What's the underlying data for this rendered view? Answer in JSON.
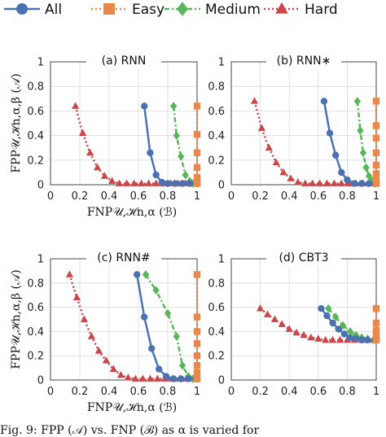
{
  "legend": [
    {
      "label": "All",
      "color": "#4a72b0",
      "marker": "circle",
      "dash": "solid"
    },
    {
      "label": "Easy",
      "color": "#e8884a",
      "marker": "square",
      "dash": "dotted"
    },
    {
      "label": "Medium",
      "color": "#5ab55a",
      "marker": "diamond",
      "dash": "dashdot"
    },
    {
      "label": "Hard",
      "color": "#c9464a",
      "marker": "triangle",
      "dash": "dotted"
    }
  ],
  "axes": {
    "ylabel": "FPP𝒰,ℋn,α,β (𝒜)",
    "xlabel": "FNP𝒰,ℋn,α (ℬ)"
  },
  "caption": "Fig. 9: FPP        (𝒜) vs. FNP        (ℬ) as α is varied for",
  "chart_data": [
    {
      "type": "line",
      "title": "(a) RNN",
      "xlim": [
        0,
        1
      ],
      "ylim": [
        0,
        1
      ],
      "xticks": [
        "0",
        "0.2",
        "0.4",
        "0.6",
        "0.8",
        "1"
      ],
      "yticks": [
        "0",
        "0.2",
        "0.4",
        "0.6",
        "0.8",
        "1"
      ],
      "grid": true,
      "series": [
        {
          "name": "All",
          "x": [
            0.64,
            0.68,
            0.72,
            0.76,
            0.8,
            0.85,
            0.9,
            0.95,
            1.0
          ],
          "y": [
            0.64,
            0.26,
            0.08,
            0.02,
            0.01,
            0.01,
            0.01,
            0.01,
            0.01
          ]
        },
        {
          "name": "Easy",
          "x": [
            1.0,
            1.0,
            1.0,
            1.0,
            1.0,
            1.0,
            1.0
          ],
          "y": [
            0.64,
            0.41,
            0.26,
            0.14,
            0.06,
            0.02,
            0.01
          ]
        },
        {
          "name": "Medium",
          "x": [
            0.84,
            0.86,
            0.89,
            0.92,
            0.95,
            0.97,
            1.0
          ],
          "y": [
            0.64,
            0.4,
            0.23,
            0.08,
            0.03,
            0.01,
            0.01
          ]
        },
        {
          "name": "Hard",
          "x": [
            0.17,
            0.22,
            0.27,
            0.32,
            0.37,
            0.42,
            0.47,
            0.52,
            0.57,
            0.62,
            0.67,
            0.72,
            0.77,
            0.82,
            0.87,
            0.92,
            0.97,
            1.0
          ],
          "y": [
            0.64,
            0.42,
            0.26,
            0.14,
            0.07,
            0.03,
            0.01,
            0.01,
            0.01,
            0.01,
            0.01,
            0.01,
            0.01,
            0.01,
            0.01,
            0.01,
            0.01,
            0.01
          ]
        }
      ]
    },
    {
      "type": "line",
      "title": "(b) RNN∗",
      "xlim": [
        0,
        1
      ],
      "ylim": [
        0,
        1
      ],
      "xticks": [
        "0",
        "0.2",
        "0.4",
        "0.6",
        "0.8",
        "1"
      ],
      "yticks": [
        "0",
        "0.2",
        "0.4",
        "0.6",
        "0.8",
        "1"
      ],
      "grid": true,
      "series": [
        {
          "name": "All",
          "x": [
            0.64,
            0.68,
            0.72,
            0.76,
            0.8,
            0.85,
            0.9,
            0.95,
            1.0
          ],
          "y": [
            0.68,
            0.42,
            0.24,
            0.1,
            0.04,
            0.01,
            0.01,
            0.01,
            0.01
          ]
        },
        {
          "name": "Easy",
          "x": [
            1.0,
            1.0,
            1.0,
            1.0,
            1.0,
            1.0,
            1.0,
            1.0
          ],
          "y": [
            0.68,
            0.48,
            0.38,
            0.26,
            0.16,
            0.09,
            0.04,
            0.01
          ]
        },
        {
          "name": "Medium",
          "x": [
            0.87,
            0.89,
            0.91,
            0.93,
            0.95,
            0.97,
            0.99
          ],
          "y": [
            0.68,
            0.44,
            0.26,
            0.14,
            0.07,
            0.03,
            0.01
          ]
        },
        {
          "name": "Hard",
          "x": [
            0.16,
            0.21,
            0.26,
            0.31,
            0.36,
            0.41,
            0.46,
            0.51,
            0.56,
            0.61,
            0.66,
            0.71,
            0.76,
            0.81,
            0.86,
            0.91,
            0.96,
            1.0
          ],
          "y": [
            0.68,
            0.46,
            0.3,
            0.18,
            0.1,
            0.05,
            0.02,
            0.01,
            0.01,
            0.01,
            0.01,
            0.01,
            0.01,
            0.01,
            0.01,
            0.01,
            0.01,
            0.01
          ]
        }
      ]
    },
    {
      "type": "line",
      "title": "(c) RNN#",
      "xlim": [
        0,
        1
      ],
      "ylim": [
        0,
        1
      ],
      "xticks": [
        "0",
        "0.2",
        "0.4",
        "0.6",
        "0.8",
        "1"
      ],
      "yticks": [
        "0",
        "0.2",
        "0.4",
        "0.6",
        "0.8",
        "1"
      ],
      "grid": true,
      "series": [
        {
          "name": "All",
          "x": [
            0.59,
            0.64,
            0.69,
            0.74,
            0.79,
            0.84,
            0.89,
            0.94,
            1.0
          ],
          "y": [
            0.87,
            0.52,
            0.26,
            0.09,
            0.03,
            0.01,
            0.01,
            0.01,
            0.01
          ]
        },
        {
          "name": "Easy",
          "x": [
            1.0,
            1.0,
            1.0,
            1.0,
            1.0,
            1.0,
            1.0,
            1.0,
            1.0
          ],
          "y": [
            0.87,
            0.52,
            0.4,
            0.3,
            0.2,
            0.12,
            0.06,
            0.02,
            0.01
          ]
        },
        {
          "name": "Medium",
          "x": [
            0.65,
            0.72,
            0.8,
            0.86,
            0.9,
            0.94,
            0.97,
            1.0
          ],
          "y": [
            0.87,
            0.74,
            0.55,
            0.36,
            0.12,
            0.03,
            0.01,
            0.01
          ]
        },
        {
          "name": "Hard",
          "x": [
            0.13,
            0.18,
            0.23,
            0.28,
            0.33,
            0.38,
            0.43,
            0.48,
            0.53,
            0.58,
            0.63,
            0.68,
            0.73,
            0.78,
            0.83,
            0.88,
            0.93,
            0.98
          ],
          "y": [
            0.87,
            0.68,
            0.5,
            0.36,
            0.24,
            0.16,
            0.09,
            0.04,
            0.02,
            0.01,
            0.01,
            0.01,
            0.01,
            0.01,
            0.01,
            0.01,
            0.01,
            0.01
          ]
        }
      ]
    },
    {
      "type": "line",
      "title": "(d) CBT3",
      "xlim": [
        0,
        1
      ],
      "ylim": [
        0,
        1
      ],
      "xticks": [
        "0",
        "0.2",
        "0.4",
        "0.6",
        "0.8",
        "1"
      ],
      "yticks": [
        "0",
        "0.2",
        "0.4",
        "0.6",
        "0.8",
        "1"
      ],
      "grid": true,
      "series": [
        {
          "name": "All",
          "x": [
            0.62,
            0.66,
            0.7,
            0.74,
            0.78,
            0.82,
            0.86,
            0.9,
            0.94,
            1.0
          ],
          "y": [
            0.59,
            0.53,
            0.47,
            0.42,
            0.38,
            0.35,
            0.34,
            0.33,
            0.33,
            0.33
          ]
        },
        {
          "name": "Easy",
          "x": [
            1.0,
            1.0,
            1.0,
            1.0,
            1.0,
            1.0,
            1.0
          ],
          "y": [
            0.59,
            0.47,
            0.41,
            0.38,
            0.36,
            0.34,
            0.33
          ]
        },
        {
          "name": "Medium",
          "x": [
            0.67,
            0.72,
            0.77,
            0.82,
            0.86,
            0.9,
            0.94,
            0.98
          ],
          "y": [
            0.59,
            0.52,
            0.45,
            0.4,
            0.37,
            0.35,
            0.34,
            0.33
          ]
        },
        {
          "name": "Hard",
          "x": [
            0.2,
            0.25,
            0.3,
            0.35,
            0.4,
            0.45,
            0.5,
            0.55,
            0.6,
            0.65,
            0.7,
            0.75,
            0.8,
            0.85,
            0.9,
            0.95,
            1.0
          ],
          "y": [
            0.59,
            0.54,
            0.5,
            0.46,
            0.42,
            0.39,
            0.37,
            0.35,
            0.34,
            0.33,
            0.33,
            0.33,
            0.33,
            0.33,
            0.33,
            0.33,
            0.33
          ]
        }
      ]
    }
  ]
}
